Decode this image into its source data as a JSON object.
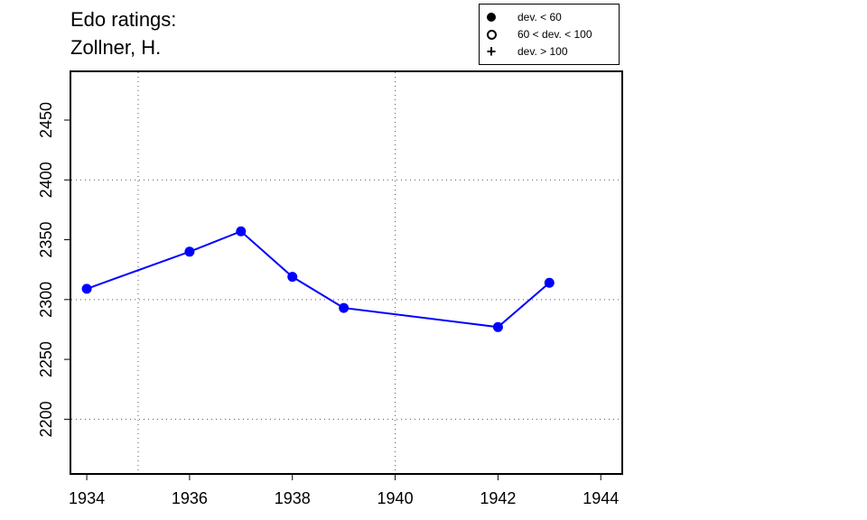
{
  "title": {
    "line1": "Edo ratings:",
    "line2": "Zollner, H."
  },
  "legend": [
    {
      "symbol": "filled-circle",
      "label": "dev. < 60"
    },
    {
      "symbol": "open-circle",
      "label": "60 < dev. < 100"
    },
    {
      "symbol": "plus",
      "label": "dev. > 100"
    }
  ],
  "colors": {
    "series": "#0000ff",
    "axis": "#000000",
    "grid": "#555555"
  },
  "chart_data": {
    "type": "line",
    "title": "Edo ratings: Zollner, H.",
    "xlabel": "",
    "ylabel": "",
    "xlim": [
      1933.7,
      1944.4
    ],
    "ylim": [
      2155,
      2490
    ],
    "xticks": [
      1934,
      1936,
      1938,
      1940,
      1942,
      1944
    ],
    "yticks": [
      2200,
      2250,
      2300,
      2350,
      2400,
      2450
    ],
    "x_gridlines": [
      1935,
      1940
    ],
    "y_gridlines": [
      2200,
      2300,
      2400
    ],
    "grid": true,
    "grid_style": "dotted",
    "legend_position": "top-right",
    "series": [
      {
        "points": [
          {
            "x": 1934,
            "y": 2309,
            "marker": "filled-circle"
          },
          {
            "x": 1936,
            "y": 2340,
            "marker": "filled-circle"
          },
          {
            "x": 1937,
            "y": 2357,
            "marker": "filled-circle"
          },
          {
            "x": 1938,
            "y": 2319,
            "marker": "filled-circle"
          },
          {
            "x": 1939,
            "y": 2293,
            "marker": "filled-circle"
          },
          {
            "x": 1942,
            "y": 2277,
            "marker": "filled-circle"
          },
          {
            "x": 1943,
            "y": 2314,
            "marker": "filled-circle"
          }
        ]
      }
    ]
  }
}
